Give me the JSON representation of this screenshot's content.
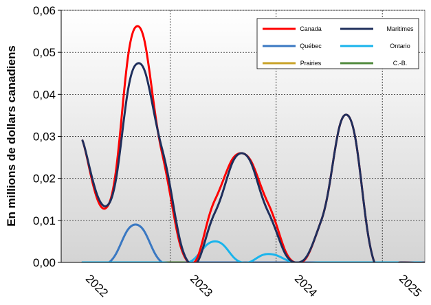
{
  "chart_data": {
    "type": "line",
    "ylabel": "En millions de dollars canadiens",
    "xlabel": "",
    "title": "",
    "ylim": [
      0,
      0.06
    ],
    "yticks": [
      "0,00",
      "0,01",
      "0,02",
      "0,03",
      "0,04",
      "0,05",
      "0,06"
    ],
    "xticks": [
      "2022",
      "2023",
      "2024",
      "2025"
    ],
    "grid": "dashed",
    "background": "vertical-gradient-gray",
    "legend_position": "top-right",
    "x_unit": "quarter",
    "series": [
      {
        "name": "Canada",
        "color": "#ff0000",
        "x": [
          0,
          1,
          2,
          3,
          4,
          5,
          6,
          7,
          8,
          9,
          10,
          11,
          12,
          13,
          14
        ],
        "values": [
          0.029,
          0.014,
          0.056,
          0.026,
          0.0,
          0.015,
          0.026,
          0.014,
          0.0,
          0.01,
          0.035,
          0.0,
          0.0,
          0.0,
          0.001
        ]
      },
      {
        "name": "Maritimes",
        "color": "#1f2f5c",
        "x": [
          0,
          1,
          2,
          3,
          4,
          5,
          6,
          7,
          8,
          9,
          10,
          11,
          12,
          13,
          14
        ],
        "values": [
          0.029,
          0.014,
          0.047,
          0.027,
          0.0,
          0.012,
          0.026,
          0.012,
          0.0,
          0.01,
          0.035,
          0.0,
          0.0,
          0.0,
          0.001
        ]
      },
      {
        "name": "Québec",
        "color": "#3a78c2",
        "x": [
          0,
          1,
          2,
          3,
          4,
          5,
          6,
          7,
          8,
          9,
          10,
          11,
          12,
          13,
          14
        ],
        "values": [
          0.0,
          0.0,
          0.009,
          0.0,
          0.0,
          0.0,
          0.0,
          0.0,
          0.0,
          0.0,
          0.0,
          0.0,
          0.0,
          0.0,
          0.001
        ]
      },
      {
        "name": "Ontario",
        "color": "#19b4ec",
        "x": [
          0,
          1,
          2,
          3,
          4,
          5,
          6,
          7,
          8,
          9,
          10,
          11,
          12,
          13,
          14
        ],
        "values": [
          0.0,
          0.0,
          0.0,
          0.0,
          0.0,
          0.005,
          0.0,
          0.002,
          0.0,
          0.0,
          0.0,
          0.0,
          0.0,
          0.0,
          0.0
        ]
      },
      {
        "name": "Prairies",
        "color": "#c9a227",
        "x": [
          0,
          1,
          2,
          3,
          4,
          5,
          6,
          7,
          8,
          9,
          10,
          11,
          12,
          13,
          14
        ],
        "values": [
          0,
          0,
          0,
          0,
          0,
          0,
          0,
          0,
          0,
          0,
          0,
          0,
          0,
          0,
          0
        ]
      },
      {
        "name": "C.-B.",
        "color": "#4f8a3c",
        "x": [
          0,
          1,
          2,
          3,
          4,
          5,
          6,
          7,
          8,
          9,
          10,
          11,
          12,
          13,
          14
        ],
        "values": [
          0,
          0,
          0,
          0,
          0,
          0,
          0,
          0,
          0,
          0,
          0,
          0,
          0,
          0,
          0
        ]
      }
    ]
  }
}
